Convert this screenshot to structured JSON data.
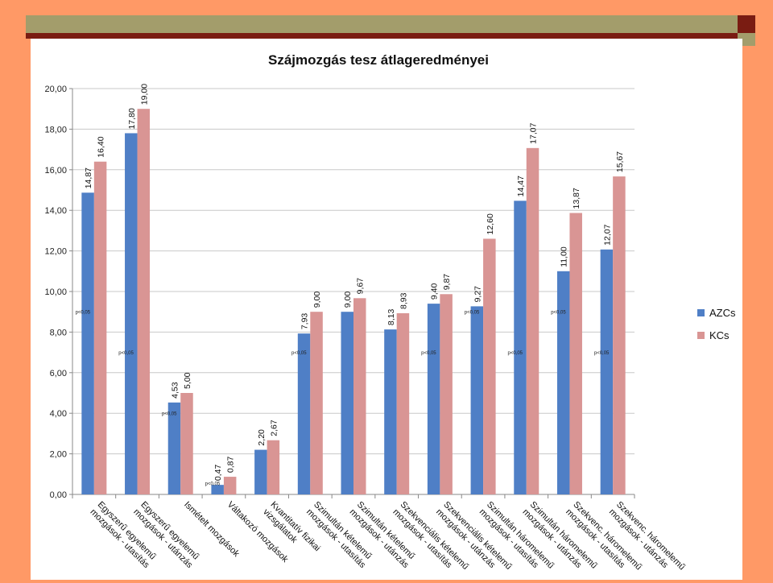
{
  "colors": {
    "background": "#ff9966",
    "header_bar": "#a39d6b",
    "header_stripe": "#7a1c12",
    "header_square": "#7a1c12",
    "panel": "#ffffff",
    "gridline": "#c8c8c8",
    "axis": "#888888",
    "series_azcs": "#4f7fc6",
    "series_kcs": "#d99594"
  },
  "chart_data": {
    "type": "bar",
    "title": "Szájmozgás tesz átlageredményei",
    "xlabel": "",
    "ylabel": "",
    "ylim": [
      0,
      20
    ],
    "yticks": [
      "0,00",
      "2,00",
      "4,00",
      "6,00",
      "8,00",
      "10,00",
      "12,00",
      "14,00",
      "16,00",
      "18,00",
      "20,00"
    ],
    "grid": true,
    "legend_position": "right",
    "categories": [
      [
        "Egyszerű egyelemű",
        "mozgások - utasítás"
      ],
      [
        "Egyszerű egyelemű",
        "mozgások - utánzás"
      ],
      [
        "Ismételt mozgások"
      ],
      [
        "Váltakozó mozgások"
      ],
      [
        "Kvantitatív fizikai",
        "vizsgálatok"
      ],
      [
        "Szimultán kételemű",
        "mozgások - utasítás"
      ],
      [
        "Szimultán kételemű",
        "mozgások - utánzás"
      ],
      [
        "Szekvenciális kételemű",
        "mozgások - utasítás"
      ],
      [
        "Szekvenciális kételemű",
        "mozgások - utánzás"
      ],
      [
        "Szimultán háromelemű",
        "mozgások - utasítás"
      ],
      [
        "Szimultán háromelemű",
        "mozgások - utánzás"
      ],
      [
        "Szekvenc. háromelemű",
        "mozgások - utasítás"
      ],
      [
        "Szekvenc. háromelemű",
        "mozgások - utánzás"
      ]
    ],
    "series": [
      {
        "name": "AZCs",
        "values": [
          14.87,
          17.8,
          4.53,
          0.47,
          2.2,
          7.93,
          9.0,
          8.13,
          9.4,
          9.27,
          14.47,
          11.0,
          12.07
        ],
        "labels": [
          "14,87",
          "17,80",
          "4,53",
          "0,47",
          "2,20",
          "7,93",
          "9,00",
          "8,13",
          "9,40",
          "9,27",
          "14,47",
          "11,00",
          "12,07"
        ]
      },
      {
        "name": "KCs",
        "values": [
          16.4,
          19.0,
          5.0,
          0.87,
          2.67,
          9.0,
          9.67,
          8.93,
          9.87,
          12.6,
          17.07,
          13.87,
          15.67
        ],
        "labels": [
          "16,40",
          "19,00",
          "5,00",
          "0,87",
          "2,67",
          "9,00",
          "9,67",
          "8,93",
          "9,87",
          "12,60",
          "17,07",
          "13,87",
          "15,67"
        ]
      }
    ],
    "annotations": [
      {
        "category_index": 0,
        "text": "p<0,05",
        "y": 8.9
      },
      {
        "category_index": 1,
        "text": "p<0,05",
        "y": 6.9
      },
      {
        "category_index": 2,
        "text": "p<0,05",
        "y": 3.9
      },
      {
        "category_index": 3,
        "text": "p<0,05",
        "y": 0.45
      },
      {
        "category_index": 5,
        "text": "p<0,05",
        "y": 6.9
      },
      {
        "category_index": 8,
        "text": "p<0,05",
        "y": 6.9
      },
      {
        "category_index": 9,
        "text": "p<0,05",
        "y": 8.9
      },
      {
        "category_index": 10,
        "text": "p<0,05",
        "y": 6.9
      },
      {
        "category_index": 11,
        "text": "p<0,05",
        "y": 8.9
      },
      {
        "category_index": 12,
        "text": "p<0,05",
        "y": 6.9
      }
    ]
  }
}
